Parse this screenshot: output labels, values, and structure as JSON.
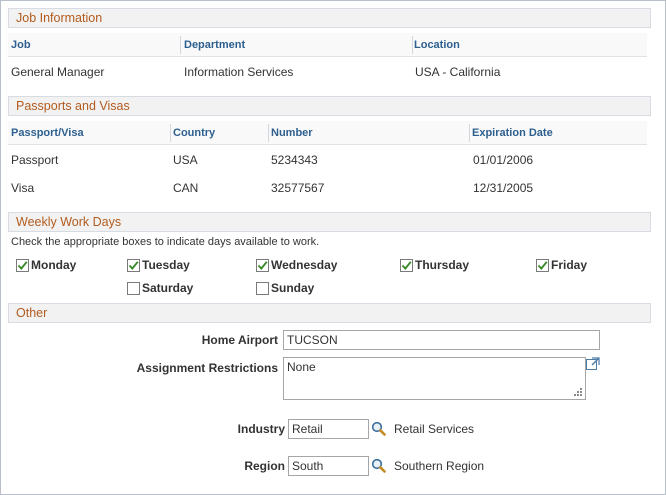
{
  "job_info": {
    "title": "Job Information",
    "columns": [
      "Job",
      "Department",
      "Location"
    ],
    "row": {
      "job": "General Manager",
      "department": "Information Services",
      "location": "USA - California"
    }
  },
  "passports": {
    "title": "Passports and Visas",
    "columns": [
      "Passport/Visa",
      "Country",
      "Number",
      "Expiration Date"
    ],
    "rows": [
      {
        "type": "Passport",
        "country": "USA",
        "number": "5234343",
        "expiration": "01/01/2006"
      },
      {
        "type": "Visa",
        "country": "CAN",
        "number": "32577567",
        "expiration": "12/31/2005"
      }
    ]
  },
  "workdays": {
    "title": "Weekly Work Days",
    "instructions": "Check the appropriate boxes to indicate days available to work.",
    "days": [
      {
        "label": "Monday",
        "checked": true
      },
      {
        "label": "Tuesday",
        "checked": true
      },
      {
        "label": "Wednesday",
        "checked": true
      },
      {
        "label": "Thursday",
        "checked": true
      },
      {
        "label": "Friday",
        "checked": true
      },
      {
        "label": "Saturday",
        "checked": false
      },
      {
        "label": "Sunday",
        "checked": false
      }
    ]
  },
  "other": {
    "title": "Other",
    "home_airport_label": "Home Airport",
    "home_airport_value": "TUCSON",
    "restrictions_label": "Assignment Restrictions",
    "restrictions_value": "None",
    "industry_label": "Industry",
    "industry_value": "Retail",
    "industry_desc": "Retail Services",
    "region_label": "Region",
    "region_value": "South",
    "region_desc": "Southern Region"
  },
  "icons": {
    "lookup": "magnifier-lookup-icon",
    "expand": "expand-textarea-icon",
    "resize": "resize-grip-icon",
    "check": "checkmark-icon"
  },
  "colors": {
    "section_title": "#b35b1d",
    "column_header": "#2d5f8f",
    "checkmark": "#3a8a2a"
  }
}
